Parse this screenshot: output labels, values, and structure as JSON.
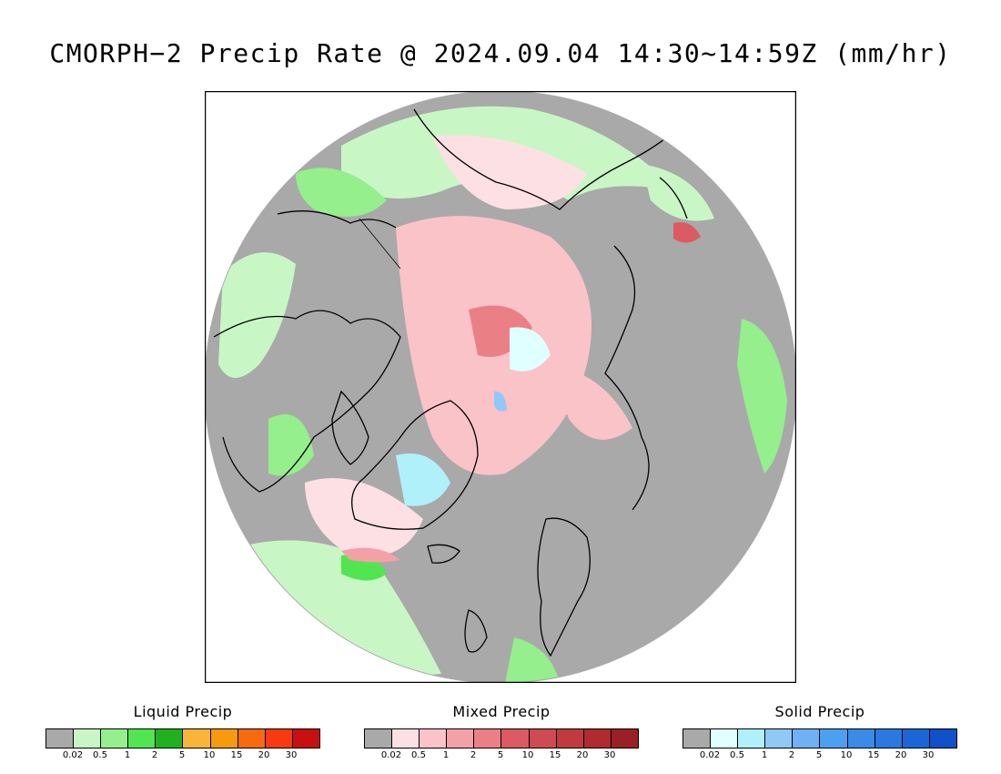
{
  "title": "CMORPH−2 Precip Rate @ 2024.09.04 14:30~14:59Z (mm/hr)",
  "map": {
    "projection": "north-polar-stereographic",
    "background_color": "#a9a9a9",
    "coastline_color": "#000000"
  },
  "legends": [
    {
      "label": "Liquid Precip",
      "colors": [
        "#a9a9a9",
        "#c8f7c5",
        "#94ef8c",
        "#52e552",
        "#20b020",
        "#f8b53a",
        "#f89a10",
        "#f86a10",
        "#f83a10",
        "#c81010"
      ],
      "ticks": [
        "0.02",
        "0.5",
        "1",
        "2",
        "5",
        "10",
        "15",
        "20",
        "30"
      ]
    },
    {
      "label": "Mixed Precip",
      "colors": [
        "#a9a9a9",
        "#fde0e3",
        "#fac3c8",
        "#f3a1a6",
        "#ea8086",
        "#dc5a62",
        "#cf4a52",
        "#c03a40",
        "#b02a30",
        "#9a2025"
      ],
      "ticks": [
        "0.02",
        "0.5",
        "1",
        "2",
        "5",
        "10",
        "15",
        "20",
        "30"
      ]
    },
    {
      "label": "Solid Precip",
      "colors": [
        "#a9a9a9",
        "#e0ffff",
        "#b0f0fa",
        "#90c8f8",
        "#70b0f5",
        "#4d9ff0",
        "#3a8ae8",
        "#2a78e0",
        "#1a66d8",
        "#1050c8"
      ],
      "ticks": [
        "0.02",
        "0.5",
        "1",
        "2",
        "5",
        "10",
        "15",
        "20",
        "30"
      ]
    }
  ]
}
